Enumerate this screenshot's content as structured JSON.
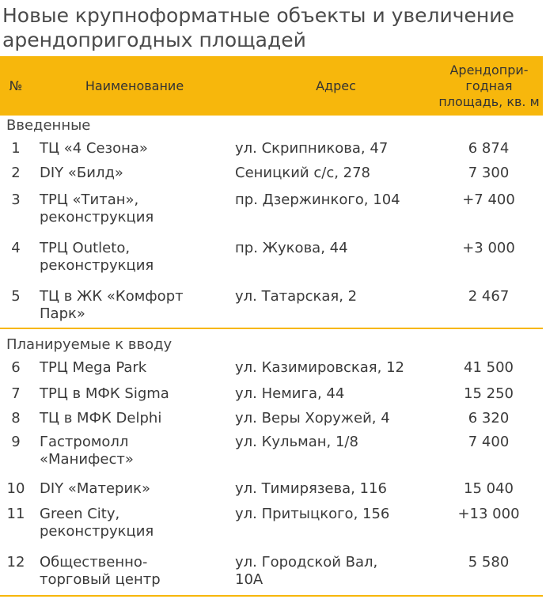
{
  "title": {
    "line1": "Новые крупноформатные объекты и увеличение",
    "line2": "арендопригодных площадей"
  },
  "header": {
    "num": "№",
    "name": "Наименование",
    "address": "Адрес",
    "area_line1": "Арендопри-",
    "area_line2": "годная",
    "area_line3": "площадь, кв. м"
  },
  "colors": {
    "accent": "#f7b70c"
  },
  "section_opened": "Введенные",
  "section_planned": "Планируемые к вводу",
  "rows": [
    {
      "num": "1",
      "name": [
        "ТЦ «4 Сезона»"
      ],
      "address": [
        "ул. Скрипникова, 47"
      ],
      "area": "6 874"
    },
    {
      "num": "2",
      "name": [
        "DIY «Билд»"
      ],
      "address": [
        "Сеницкий с/с, 278"
      ],
      "area": "7 300"
    },
    {
      "num": "3",
      "name": [
        "ТРЦ «Титан»,",
        "реконструкция"
      ],
      "address": [
        "пр. Дзержинкого, 104"
      ],
      "area": "+7 400"
    },
    {
      "num": "4",
      "name": [
        "ТРЦ Outleto,",
        "реконструкция"
      ],
      "address": [
        "пр. Жукова, 44"
      ],
      "area": "+3 000"
    },
    {
      "num": "5",
      "name": [
        "ТЦ в ЖК «Комфорт",
        "Парк»"
      ],
      "address": [
        "ул. Татарская, 2"
      ],
      "area": "2 467"
    },
    {
      "num": "6",
      "name": [
        "ТРЦ Mega Park"
      ],
      "address": [
        "ул. Казимировская, 12"
      ],
      "area": "41 500"
    },
    {
      "num": "7",
      "name": [
        "ТРЦ в МФК Sigma"
      ],
      "address": [
        "ул. Немига, 44"
      ],
      "area": "15 250"
    },
    {
      "num": "8",
      "name": [
        "ТЦ в МФК Delphi"
      ],
      "address": [
        "ул. Веры Хоружей, 4"
      ],
      "area": "6 320"
    },
    {
      "num": "9",
      "name": [
        "Гастромолл",
        "«Манифест»"
      ],
      "address": [
        "ул. Кульман, 1/8"
      ],
      "area": "7 400"
    },
    {
      "num": "10",
      "name": [
        "DIY «Материк»"
      ],
      "address": [
        "ул. Тимирязева, 116"
      ],
      "area": "15 040"
    },
    {
      "num": "11",
      "name": [
        "Green City,",
        "реконструкция"
      ],
      "address": [
        "ул. Притыцкого, 156"
      ],
      "area": "+13 000"
    },
    {
      "num": "12",
      "name": [
        "Общественно-",
        "торговый центр"
      ],
      "address": [
        "ул. Городской Вал,",
        "10А"
      ],
      "area": "5 580"
    }
  ]
}
